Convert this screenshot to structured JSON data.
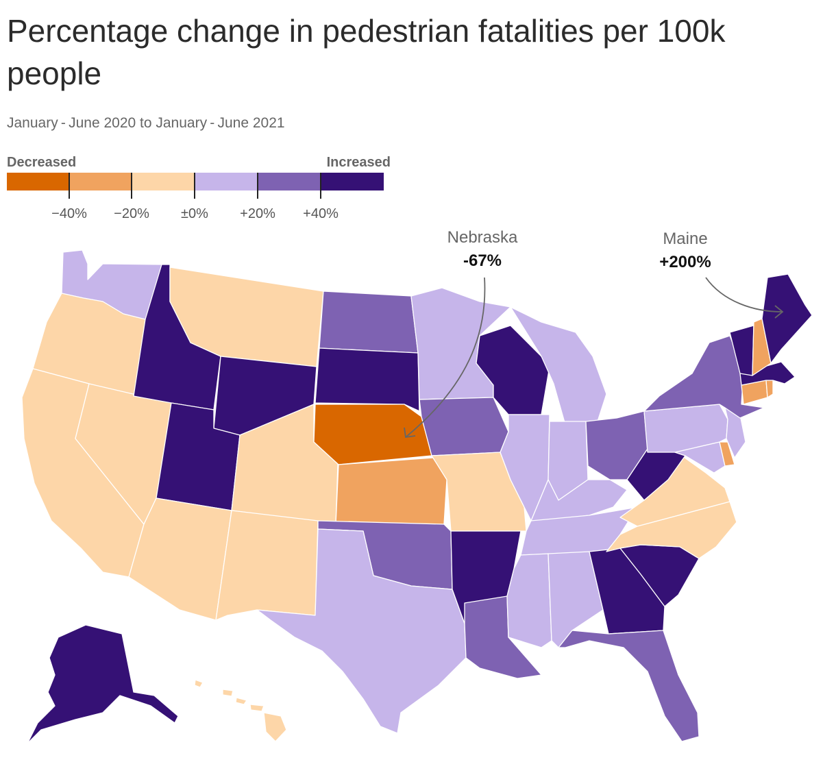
{
  "title": "Percentage change in pedestrian fatalities per 100k people",
  "subtitle": "January - June 2020 to January - June 2021",
  "legend": {
    "low_label": "Decreased",
    "high_label": "Increased",
    "colors": [
      "#d96700",
      "#f0a35f",
      "#fdd6a8",
      "#c6b5ea",
      "#7e62b2",
      "#351175"
    ],
    "ticks": [
      "−40%",
      "−20%",
      "±0%",
      "+20%",
      "+40%"
    ]
  },
  "callouts": {
    "nebraska": {
      "name": "Nebraska",
      "value": "-67%"
    },
    "maine": {
      "name": "Maine",
      "value": "+200%"
    }
  },
  "states": {
    "WA": 3,
    "OR": 2,
    "CA": 2,
    "NV": 2,
    "ID": 5,
    "MT": 2,
    "WY": 5,
    "UT": 5,
    "AZ": 2,
    "CO": 2,
    "NM": 2,
    "ND": 4,
    "SD": 5,
    "NE": 0,
    "KS": 1,
    "OK": 4,
    "TX": 3,
    "MN": 3,
    "IA": 4,
    "MO": 2,
    "AR": 5,
    "LA": 4,
    "WI": 5,
    "IL": 3,
    "MI": 3,
    "IN": 3,
    "OH": 4,
    "KY": 3,
    "TN": 3,
    "MS": 3,
    "AL": 3,
    "GA": 5,
    "FL": 4,
    "SC": 5,
    "NC": 2,
    "VA": 2,
    "WV": 5,
    "MD": 3,
    "DE": 1,
    "PA": 3,
    "NJ": 3,
    "NY": 4,
    "CT": 1,
    "RI": 1,
    "MA": 5,
    "VT": 5,
    "NH": 1,
    "ME": 5,
    "AK": 5,
    "HI": 2
  }
}
